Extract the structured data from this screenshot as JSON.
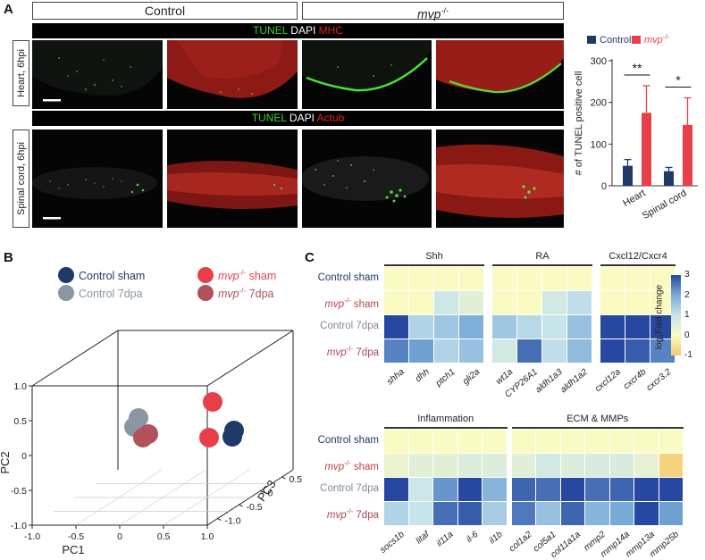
{
  "panel_a": {
    "letter": "A",
    "headers": {
      "control": "Control",
      "mvp": "mvp",
      "mvp_sup": "-/-"
    },
    "heart_stain": {
      "g": "TUNEL",
      "w": " DAPI ",
      "r": "MHC"
    },
    "spinal_stain": {
      "g": "TUNEL",
      "w": " DAPI ",
      "r": "Actub"
    },
    "heart_label": "Heart, 6hpi",
    "spinal_label": "Spinal cord, 6hpi",
    "colors": {
      "green": "#3fcf3a",
      "red": "#e02020"
    }
  },
  "panel_b": {
    "letter": "B",
    "legend": [
      {
        "name": "Control sham",
        "color": "#1f3a68",
        "italic_part": ""
      },
      {
        "name": "Control 7dpa",
        "color": "#8a96a3",
        "italic_part": ""
      },
      {
        "name": " sham",
        "color": "#e8404a",
        "italic_part": "mvp",
        "sup": "-/-"
      },
      {
        "name": " 7dpa",
        "color": "#b2515a",
        "italic_part": "mvp",
        "sup": "-/-"
      }
    ],
    "axes": {
      "pc1": "PC1",
      "pc2": "PC2",
      "pc3": "PC3"
    },
    "ticks": {
      "pc2": [
        "1.0",
        "0.5",
        "0",
        "-0.5",
        "-1.0"
      ],
      "pc1": [
        "-1.0",
        "-0.5",
        "0",
        "0.5",
        "1.0"
      ],
      "pc3": [
        "0.5",
        "0",
        "-0.5",
        "-1.0"
      ]
    }
  },
  "panel_c": {
    "letter": "C",
    "row_names": [
      {
        "text": "Control sham",
        "color": "#1f3a68",
        "italic": "",
        "sup": ""
      },
      {
        "text": " sham",
        "color": "#c0424a",
        "italic": "mvp",
        "sup": "-/-"
      },
      {
        "text": "Control 7dpa",
        "color": "#7f8b98",
        "italic": "",
        "sup": ""
      },
      {
        "text": " 7dpa",
        "color": "#a44a52",
        "italic": "mvp",
        "sup": "-/-"
      }
    ],
    "colorbar": {
      "label": "log₂Fold change",
      "ticks": [
        "3",
        "2",
        "1",
        "0",
        "-1"
      ]
    },
    "top_groups": [
      {
        "name": "Shh",
        "genes": [
          "shha",
          "dhh",
          "ptch1",
          "gli2a"
        ],
        "values": [
          [
            0,
            0,
            0,
            0
          ],
          [
            0,
            0,
            0.9,
            0.5
          ],
          [
            3,
            1.3,
            1.5,
            1.9
          ],
          [
            2.4,
            2.1,
            1.3,
            1.6
          ]
        ]
      },
      {
        "name": "RA",
        "genes": [
          "wt1a",
          "CYP26A1",
          "aldh1a3",
          "aldh1a2"
        ],
        "values": [
          [
            0,
            0,
            0,
            0
          ],
          [
            0,
            0,
            0.8,
            1.1
          ],
          [
            1.5,
            1.2,
            1.0,
            1.6
          ],
          [
            0.8,
            2.6,
            1.1,
            1.7
          ]
        ]
      },
      {
        "name": "Cxcl12/Cxcr4",
        "genes": [
          "cxcl12a",
          "cxcr4b",
          "cxcr3.2"
        ],
        "values": [
          [
            0,
            0,
            0
          ],
          [
            0,
            0,
            0
          ],
          [
            3,
            3,
            3
          ],
          [
            3,
            2.8,
            2.4
          ]
        ]
      }
    ],
    "bottom_groups": [
      {
        "name": "Inflammation",
        "genes": [
          "socs1b",
          "litaf",
          "il11a",
          "il-6",
          "il1b"
        ],
        "values": [
          [
            0,
            0,
            0,
            0,
            0
          ],
          [
            0.3,
            0.5,
            0.5,
            0.6,
            0.6
          ],
          [
            3,
            0.9,
            2.2,
            3,
            1.8
          ],
          [
            1.3,
            1.0,
            2.6,
            2.8,
            1.4
          ]
        ]
      },
      {
        "name": "ECM & MMPs",
        "genes": [
          "col1a2",
          "col5a1",
          "col11a1a",
          "mmp2",
          "mmp14a",
          "mmp13a",
          "mmp25b"
        ],
        "values": [
          [
            0,
            0,
            0,
            0,
            0,
            0,
            0
          ],
          [
            0.5,
            0.8,
            0.6,
            0.7,
            0.7,
            0.4,
            -0.8
          ],
          [
            2.7,
            2.6,
            3,
            2.6,
            2.7,
            3,
            3
          ],
          [
            2.5,
            1.6,
            2.7,
            1.8,
            2.0,
            3,
            2.1
          ]
        ]
      }
    ]
  },
  "chart_data": {
    "type": "bar",
    "categories": [
      "Heart",
      "Spinal cord"
    ],
    "series": [
      {
        "name": "Control",
        "values": [
          48,
          35
        ],
        "errors": [
          15,
          9
        ],
        "color": "#1f3a68"
      },
      {
        "name": "mvp-/-",
        "values": [
          175,
          146
        ],
        "errors": [
          65,
          65
        ],
        "color": "#e8404a"
      }
    ],
    "ylabel": "# of TUNEL positive cell",
    "ylim": [
      0,
      300
    ],
    "yticks": [
      0,
      100,
      200,
      300
    ],
    "significance": [
      "**",
      "*"
    ],
    "legend_position": "top"
  }
}
